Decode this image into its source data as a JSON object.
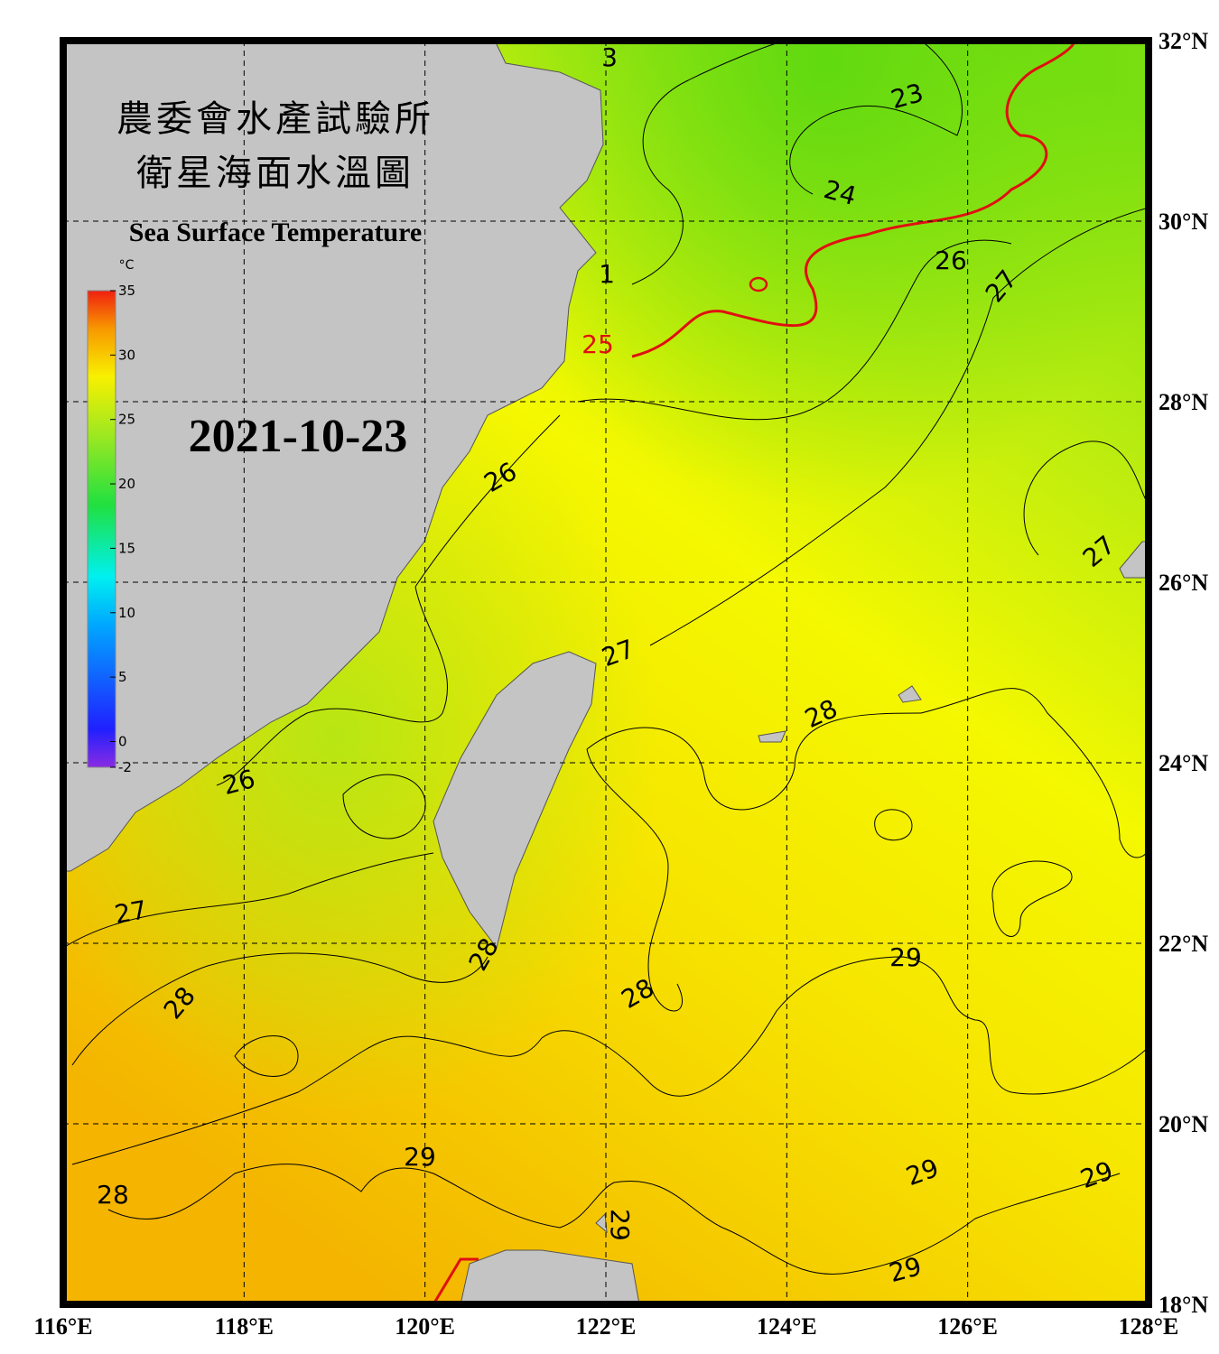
{
  "header": {
    "title_zh_1": "農委會水產試驗所",
    "title_zh_2": "衛星海面水溫圖",
    "title_en": "Sea Surface Temperature",
    "date": "2021-10-23"
  },
  "colorbar": {
    "unit": "°C",
    "ticks": [
      35,
      30,
      25,
      20,
      15,
      10,
      5,
      0,
      -2
    ]
  },
  "lon_labels": [
    "116°E",
    "118°E",
    "120°E",
    "122°E",
    "124°E",
    "126°E",
    "128°E"
  ],
  "lat_labels": [
    "32°N",
    "30°N",
    "28°N",
    "26°N",
    "24°N",
    "22°N",
    "20°N",
    "18°N"
  ],
  "contour_labels": [
    "3",
    "23",
    "24",
    "1",
    "25",
    "26",
    "27",
    "26",
    "27",
    "27",
    "28",
    "26",
    "27",
    "28",
    "29",
    "28",
    "28",
    "29",
    "29",
    "29",
    "28",
    "29",
    "29"
  ]
}
